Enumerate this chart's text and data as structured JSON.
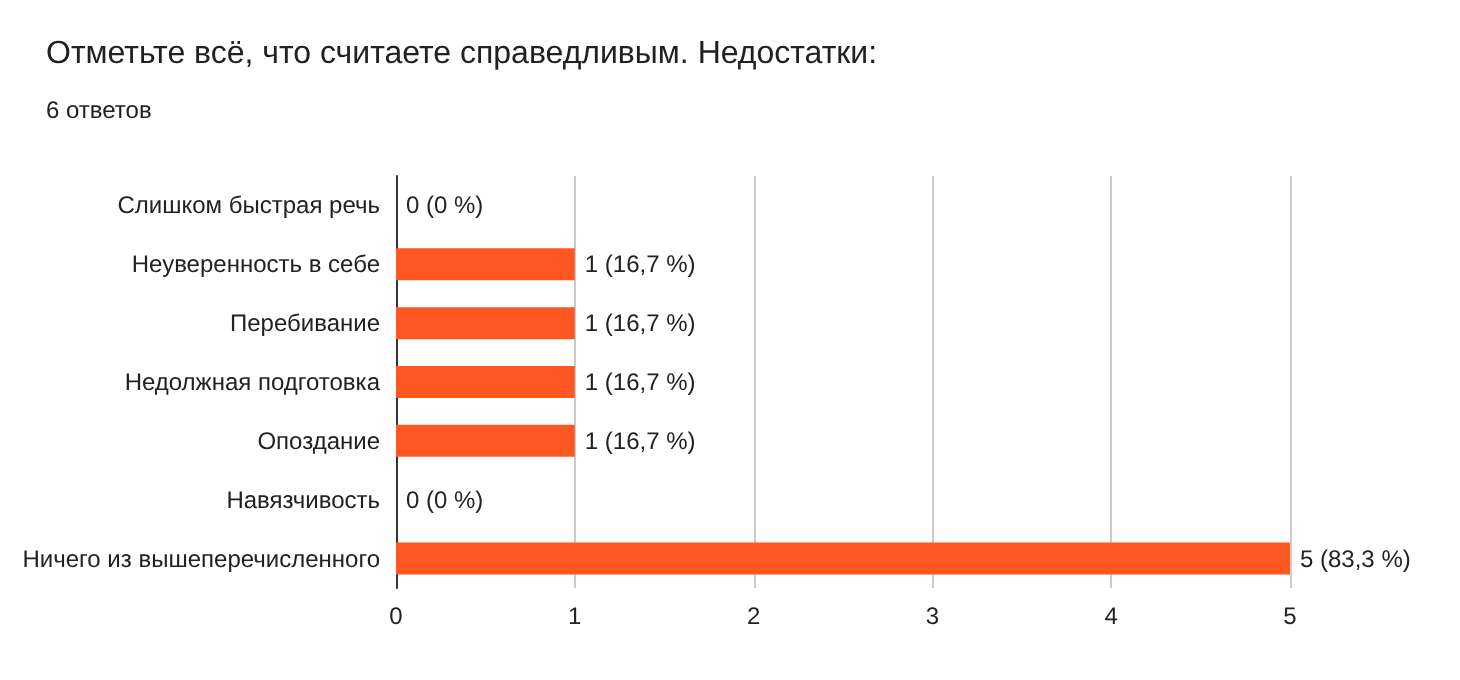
{
  "chart_data": {
    "type": "bar",
    "orientation": "horizontal",
    "title": "Отметьте всё, что считаете справедливым. Недостатки:",
    "subtitle": "6 ответов",
    "categories": [
      "Слишком быстрая речь",
      "Неуверенность в себе",
      "Перебивание",
      "Недолжная подготовка",
      "Опоздание",
      "Навязчивость",
      "Ничего из вышеперечисленного"
    ],
    "values": [
      0,
      1,
      1,
      1,
      1,
      0,
      5
    ],
    "value_labels": [
      "0 (0 %)",
      "1 (16,7 %)",
      "1 (16,7 %)",
      "1 (16,7 %)",
      "1 (16,7 %)",
      "0 (0 %)",
      "5 (83,3 %)"
    ],
    "color": "#ff5722",
    "xlim": [
      0,
      5
    ],
    "xticks": [
      0,
      1,
      2,
      3,
      4,
      5
    ],
    "grid": "x"
  }
}
